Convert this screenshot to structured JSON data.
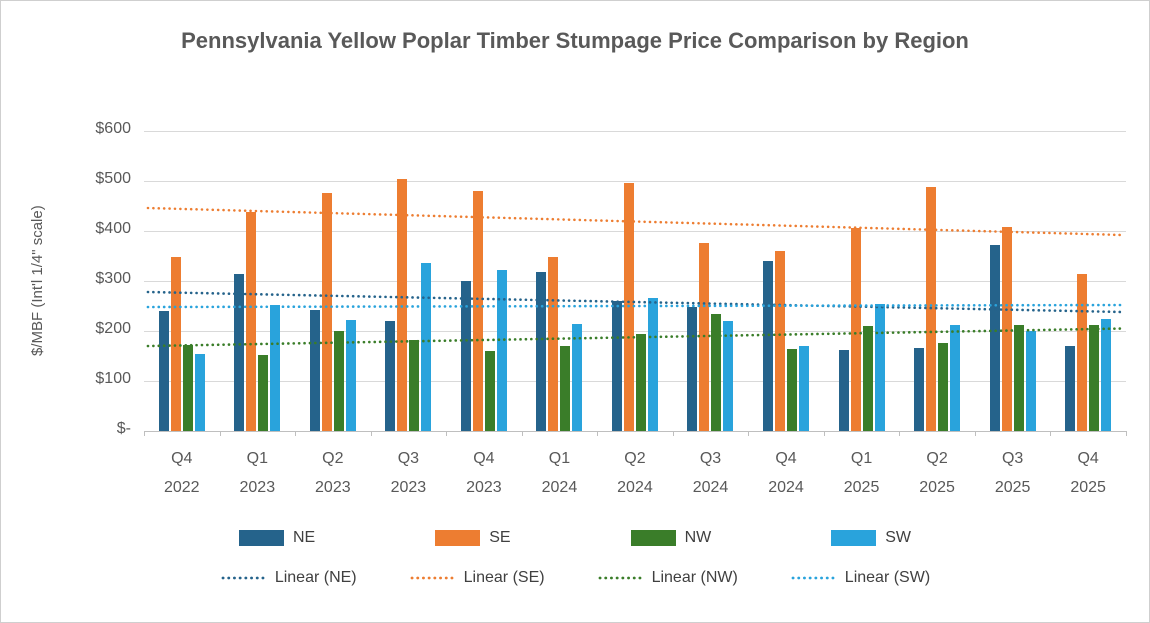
{
  "chart_data": {
    "type": "bar",
    "title": "Pennsylvania Yellow Poplar Timber Stumpage Price Comparison by Region",
    "xlabel": "",
    "ylabel": "$/MBF (Int'l 1/4\" scale)",
    "ylim": [
      0,
      600
    ],
    "ytick_step": 100,
    "ytick_labels_top_down": [
      "$600",
      "$500",
      "$400",
      "$300",
      "$200",
      "$100",
      "$-"
    ],
    "grid": true,
    "legend_position": "bottom",
    "categories": [
      {
        "quarter": "Q4",
        "year": "2022"
      },
      {
        "quarter": "Q1",
        "year": "2023"
      },
      {
        "quarter": "Q2",
        "year": "2023"
      },
      {
        "quarter": "Q3",
        "year": "2023"
      },
      {
        "quarter": "Q4",
        "year": "2023"
      },
      {
        "quarter": "Q1",
        "year": "2024"
      },
      {
        "quarter": "Q2",
        "year": "2024"
      },
      {
        "quarter": "Q3",
        "year": "2024"
      },
      {
        "quarter": "Q4",
        "year": "2024"
      },
      {
        "quarter": "Q1",
        "year": "2025"
      },
      {
        "quarter": "Q2",
        "year": "2025"
      },
      {
        "quarter": "Q3",
        "year": "2025"
      },
      {
        "quarter": "Q4",
        "year": "2025"
      }
    ],
    "series": [
      {
        "name": "NE",
        "color": "#25638B",
        "values": [
          240,
          315,
          243,
          220,
          300,
          318,
          260,
          248,
          340,
          163,
          167,
          373,
          170
        ]
      },
      {
        "name": "SE",
        "color": "#ED7D31",
        "values": [
          348,
          438,
          477,
          505,
          480,
          348,
          497,
          376,
          360,
          406,
          488,
          408,
          314
        ]
      },
      {
        "name": "NW",
        "color": "#3A7D29",
        "values": [
          172,
          152,
          200,
          182,
          161,
          171,
          195,
          234,
          165,
          211,
          177,
          212,
          212
        ]
      },
      {
        "name": "SW",
        "color": "#29A3DC",
        "values": [
          155,
          253,
          222,
          337,
          322,
          215,
          266,
          220,
          170,
          255,
          213,
          200,
          224
        ]
      }
    ],
    "trendlines": [
      {
        "name": "Linear (NE)",
        "series": "NE",
        "color": "#25638B",
        "start": 278,
        "end": 238
      },
      {
        "name": "Linear (SE)",
        "series": "SE",
        "color": "#ED7D31",
        "start": 446,
        "end": 392
      },
      {
        "name": "Linear (NW)",
        "series": "NW",
        "color": "#3A7D29",
        "start": 170,
        "end": 205
      },
      {
        "name": "Linear (SW)",
        "series": "SW",
        "color": "#29A3DC",
        "start": 248,
        "end": 252
      }
    ]
  },
  "colors": {
    "text": "#595959",
    "legend_text": "#404040",
    "gridline": "#D9D9D9",
    "axis_line": "#BFBFBF",
    "background": "#FFFFFF",
    "frame_border": "#CFCFCF"
  }
}
